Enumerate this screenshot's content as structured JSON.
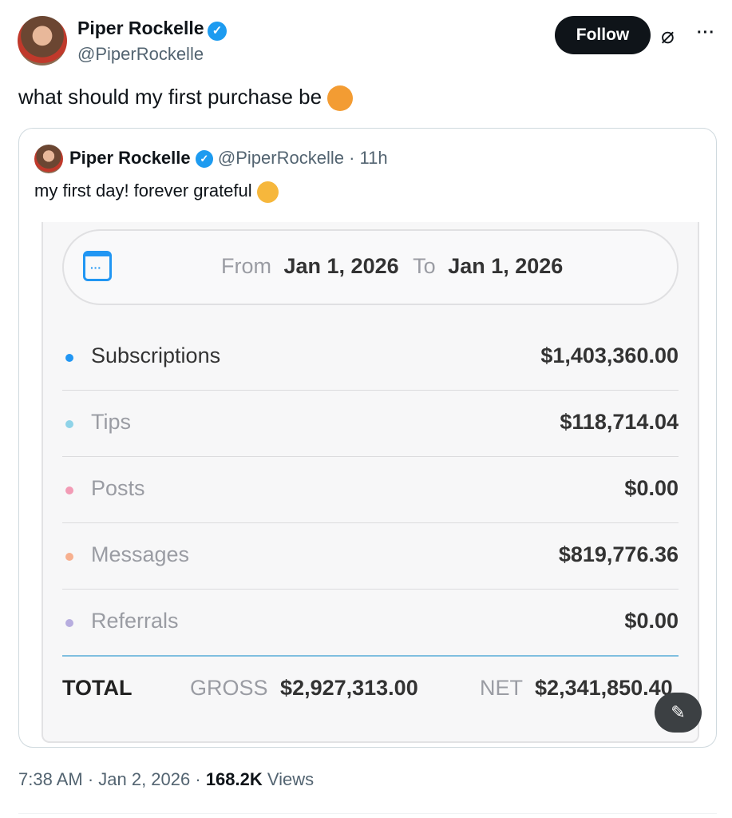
{
  "tweet": {
    "author_name": "Piper Rockelle",
    "author_handle": "@PiperRockelle",
    "follow_label": "Follow",
    "text": "what should my first purchase be",
    "emoji": "face-with-open-eyes-and-hand-over-mouth",
    "timestamp": "7:38 AM · Jan 2, 2026 · ",
    "views_count": "168.2K",
    "views_label": " Views"
  },
  "quoted": {
    "author_name": "Piper Rockelle",
    "author_handle": "@PiperRockelle",
    "age": "· 11h",
    "text": "my first day! forever grateful",
    "emoji": "pleading-face"
  },
  "earnings": {
    "from_label": "From",
    "from_date": "Jan 1, 2026",
    "to_label": "To",
    "to_date": "Jan 1, 2026",
    "rows": [
      {
        "label": "Subscriptions",
        "value": "$1,403,360.00",
        "color": "#2196f3"
      },
      {
        "label": "Tips",
        "value": "$118,714.04",
        "color": "#8fd3e8"
      },
      {
        "label": "Posts",
        "value": "$0.00",
        "color": "#f29bb5"
      },
      {
        "label": "Messages",
        "value": "$819,776.36",
        "color": "#f7b08f"
      },
      {
        "label": "Referrals",
        "value": "$0.00",
        "color": "#b7addf"
      }
    ],
    "total_label": "TOTAL",
    "gross_label": "GROSS",
    "gross_value": "$2,927,313.00",
    "net_label": "NET",
    "net_value": "$2,341,850.40"
  }
}
